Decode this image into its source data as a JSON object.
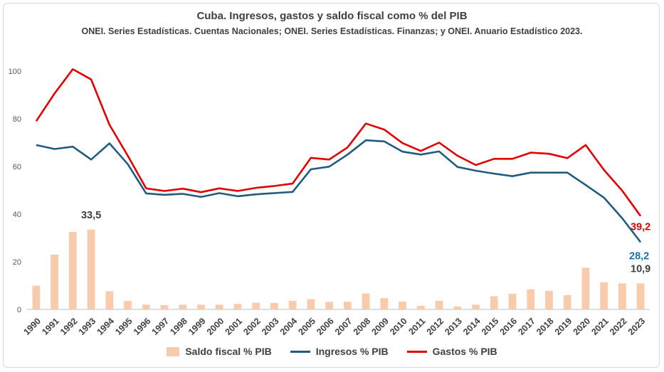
{
  "chart_data": {
    "type": "bar+line",
    "title": "Cuba. Ingresos, gastos y saldo fiscal como % del PIB",
    "subtitle": "ONEI. Series Estadísticas. Cuentas Nacionales; ONEI. Series Estadísticas. Finanzas; y ONEI. Anuario Estadístico 2023.",
    "categories": [
      "1990",
      "1991",
      "1992",
      "1993",
      "1994",
      "1995",
      "1996",
      "1997",
      "1998",
      "1999",
      "2000",
      "2001",
      "2002",
      "2003",
      "2004",
      "2005",
      "2006",
      "2007",
      "2008",
      "2009",
      "2010",
      "2011",
      "2012",
      "2013",
      "2014",
      "2015",
      "2016",
      "2017",
      "2018",
      "2019",
      "2020",
      "2021",
      "2022",
      "2023"
    ],
    "ylim": [
      0,
      100
    ],
    "yticks": [
      0,
      20,
      40,
      60,
      80,
      100
    ],
    "grid": false,
    "legend_position": "bottom",
    "series": [
      {
        "name": "Saldo fiscal % PIB",
        "type": "bar",
        "color": "#f8cbad",
        "values": [
          10.0,
          23.0,
          32.5,
          33.5,
          7.6,
          3.5,
          2.0,
          1.8,
          2.0,
          2.0,
          2.0,
          2.3,
          2.8,
          2.7,
          3.6,
          4.3,
          3.2,
          3.2,
          6.7,
          4.7,
          3.3,
          1.5,
          3.6,
          1.2,
          2.0,
          5.5,
          6.6,
          8.4,
          7.8,
          6.0,
          17.5,
          11.4,
          10.9,
          10.9
        ]
      },
      {
        "name": "Ingresos % PIB",
        "type": "line",
        "color": "#1f5c7d",
        "values": [
          69.0,
          67.3,
          68.3,
          62.9,
          69.7,
          61.0,
          48.7,
          48.1,
          48.5,
          47.2,
          48.8,
          47.5,
          48.3,
          48.8,
          49.3,
          58.8,
          59.9,
          65.0,
          71.0,
          70.5,
          66.2,
          65.0,
          66.3,
          59.8,
          58.2,
          57.0,
          55.9,
          57.4,
          57.4,
          57.4,
          52.2,
          46.9,
          38.2,
          28.2
        ]
      },
      {
        "name": "Gastos % PIB",
        "type": "line",
        "color": "#e00000",
        "values": [
          79.0,
          90.6,
          100.8,
          96.5,
          77.5,
          64.5,
          50.8,
          49.7,
          50.7,
          49.2,
          50.8,
          49.7,
          51.0,
          51.8,
          52.8,
          63.6,
          62.9,
          68.0,
          78.0,
          75.5,
          69.8,
          66.5,
          70.0,
          64.5,
          60.6,
          63.2,
          63.2,
          65.8,
          65.3,
          63.5,
          69.0,
          58.5,
          49.8,
          39.2
        ]
      }
    ],
    "annotations": [
      {
        "label": "33,5",
        "category": "1993",
        "series": "Saldo fiscal % PIB",
        "color": "#404040"
      },
      {
        "label": "10,9",
        "category": "2023",
        "series": "Saldo fiscal % PIB",
        "color": "#404040"
      },
      {
        "label": "28,2",
        "category": "2023",
        "series": "Ingresos % PIB",
        "color": "#1f6ea8"
      },
      {
        "label": "39,2",
        "category": "2023",
        "series": "Gastos % PIB",
        "color": "#e00000"
      }
    ]
  }
}
